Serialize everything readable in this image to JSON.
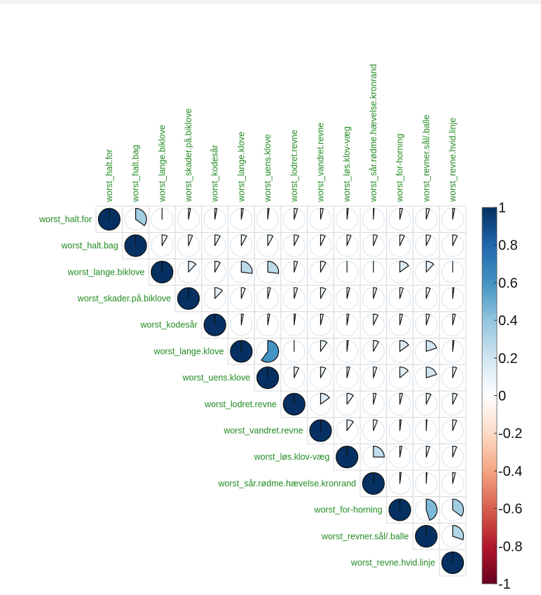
{
  "chart_data": {
    "type": "corrplot",
    "method": "pie",
    "layout": "upper",
    "variables": [
      "worst_halt.for",
      "worst_halt.bag",
      "worst_lange.biklove",
      "worst_skader.på.biklove",
      "worst_kodesår",
      "worst_lange.klove",
      "worst_uens.klove",
      "worst_lodret.revne",
      "worst_vandret.revne",
      "worst_løs.klov-væg",
      "worst_sår.rødme.hævelse.kronrand",
      "worst_for-horning",
      "worst_revner.sål/.balle",
      "worst_revne.hvid.linje"
    ],
    "matrix": [
      [
        1,
        0.35,
        0.0,
        0.03,
        0.03,
        0.03,
        0.02,
        0.05,
        0.04,
        0.02,
        0.01,
        0.04,
        0.05,
        0.03
      ],
      [
        null,
        1,
        0.08,
        0.06,
        0.08,
        0.08,
        0.08,
        0.07,
        0.07,
        0.06,
        0.06,
        0.07,
        0.07,
        0.07
      ],
      [
        null,
        null,
        1,
        0.12,
        0.08,
        0.27,
        0.27,
        0.05,
        0.08,
        0.0,
        0.0,
        0.15,
        0.12,
        0.0
      ],
      [
        null,
        null,
        null,
        1,
        0.12,
        0.06,
        0.04,
        0.05,
        0.08,
        0.04,
        0.05,
        0.05,
        0.06,
        0.02
      ],
      [
        null,
        null,
        null,
        null,
        1,
        0.03,
        0.03,
        0.02,
        0.04,
        0.03,
        0.07,
        0.04,
        0.05,
        0.04
      ],
      [
        null,
        null,
        null,
        null,
        null,
        1,
        0.6,
        0.0,
        0.1,
        0.02,
        0.08,
        0.15,
        0.2,
        0.02
      ],
      [
        null,
        null,
        null,
        null,
        null,
        null,
        1,
        0.07,
        0.08,
        0.04,
        0.05,
        0.14,
        0.2,
        0.06
      ],
      [
        null,
        null,
        null,
        null,
        null,
        null,
        null,
        1,
        0.15,
        0.1,
        0.04,
        0.04,
        0.07,
        0.07
      ],
      [
        null,
        null,
        null,
        null,
        null,
        null,
        null,
        null,
        1,
        0.1,
        0.06,
        0.02,
        0.01,
        0.06
      ],
      [
        null,
        null,
        null,
        null,
        null,
        null,
        null,
        null,
        null,
        1,
        0.25,
        0.03,
        0.05,
        0.06
      ],
      [
        null,
        null,
        null,
        null,
        null,
        null,
        null,
        null,
        null,
        null,
        1,
        0.02,
        0.01,
        0.04
      ],
      [
        null,
        null,
        null,
        null,
        null,
        null,
        null,
        null,
        null,
        null,
        null,
        1,
        0.45,
        0.35
      ],
      [
        null,
        null,
        null,
        null,
        null,
        null,
        null,
        null,
        null,
        null,
        null,
        null,
        1,
        0.3
      ],
      [
        null,
        null,
        null,
        null,
        null,
        null,
        null,
        null,
        null,
        null,
        null,
        null,
        null,
        1
      ]
    ],
    "colorbar": {
      "ticks": [
        "1",
        "0.8",
        "0.6",
        "0.4",
        "0.2",
        "0",
        "-0.2",
        "-0.4",
        "-0.6",
        "-0.8",
        "-1"
      ],
      "range": [
        -1,
        1
      ],
      "colors": [
        "#67001F",
        "#B2182B",
        "#D6604D",
        "#F4A582",
        "#FDDBC7",
        "#FFFFFF",
        "#D1E5F0",
        "#92C5DE",
        "#4393C3",
        "#2166AC",
        "#053061"
      ]
    },
    "label_color": "#228B22"
  }
}
